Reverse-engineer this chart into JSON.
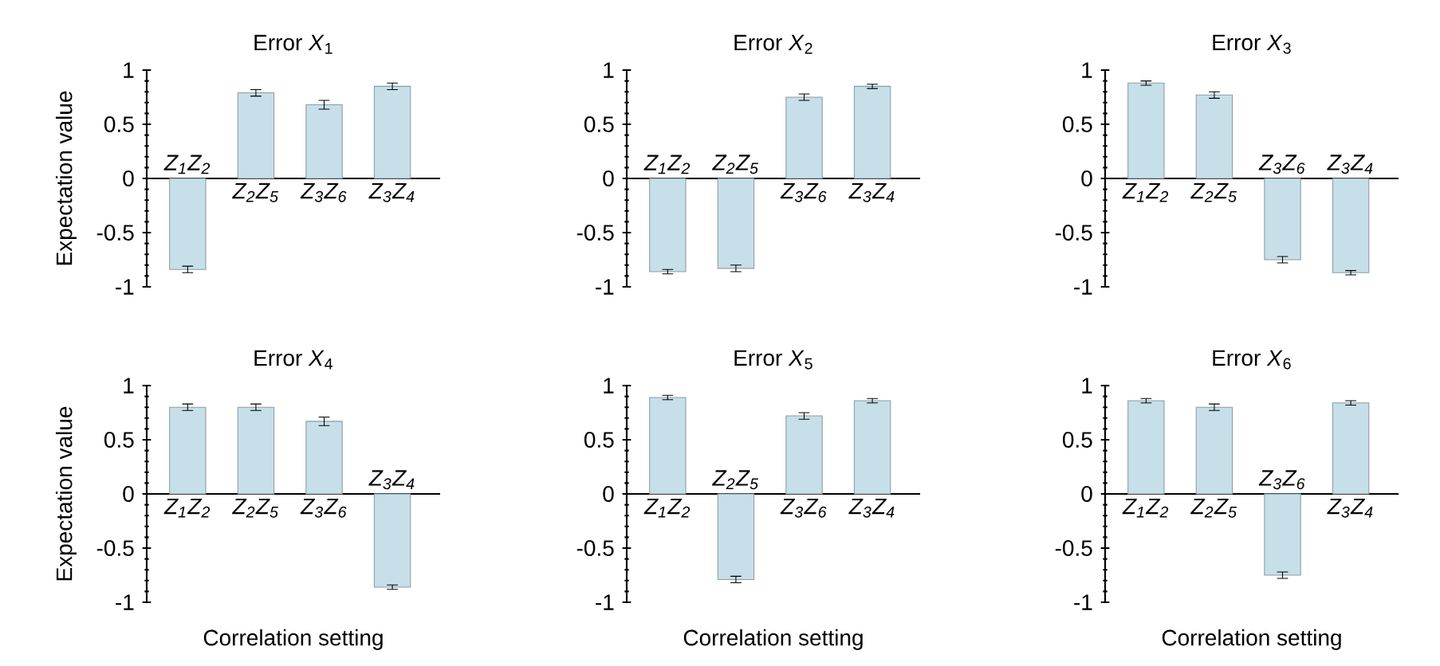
{
  "chart_data": [
    {
      "type": "bar",
      "title": "Error *X*$_{1}$",
      "ylabel": "Expectation value",
      "categories": [
        "Z$_{1}$Z$_{2}$",
        "Z$_{2}$Z$_{5}$",
        "Z$_{3}$Z$_{6}$",
        "Z$_{3}$Z$_{4}$"
      ],
      "values": [
        -0.84,
        0.79,
        0.68,
        0.85
      ],
      "errors": [
        0.03,
        0.03,
        0.04,
        0.03
      ],
      "color": "#c6dfe9",
      "ylim": [
        -1,
        1
      ],
      "yticks": [
        -1,
        -0.5,
        0,
        0.5,
        1
      ]
    },
    {
      "type": "bar",
      "title": "Error *X*$_{2}$",
      "categories": [
        "Z$_{1}$Z$_{2}$",
        "Z$_{2}$Z$_{5}$",
        "Z$_{3}$Z$_{6}$",
        "Z$_{3}$Z$_{4}$"
      ],
      "values": [
        -0.86,
        -0.83,
        0.75,
        0.85
      ],
      "errors": [
        0.02,
        0.03,
        0.03,
        0.02
      ],
      "color": "#c6dfe9",
      "ylim": [
        -1,
        1
      ],
      "yticks": [
        -1,
        -0.5,
        0,
        0.5,
        1
      ]
    },
    {
      "type": "bar",
      "title": "Error *X*$_{3}$",
      "categories": [
        "Z$_{1}$Z$_{2}$",
        "Z$_{2}$Z$_{5}$",
        "Z$_{3}$Z$_{6}$",
        "Z$_{3}$Z$_{4}$"
      ],
      "values": [
        0.88,
        0.77,
        -0.75,
        -0.87
      ],
      "errors": [
        0.02,
        0.03,
        0.03,
        0.02
      ],
      "color": "#c6dfe9",
      "ylim": [
        -1,
        1
      ],
      "yticks": [
        -1,
        -0.5,
        0,
        0.5,
        1
      ]
    },
    {
      "type": "bar",
      "title": "Error *X*$_{4}$",
      "ylabel": "Expectation value",
      "xlabel": "Correlation setting",
      "categories": [
        "Z$_{1}$Z$_{2}$",
        "Z$_{2}$Z$_{5}$",
        "Z$_{3}$Z$_{6}$",
        "Z$_{3}$Z$_{4}$"
      ],
      "values": [
        0.8,
        0.8,
        0.67,
        -0.86
      ],
      "errors": [
        0.03,
        0.03,
        0.04,
        0.02
      ],
      "color": "#c6dfe9",
      "ylim": [
        -1,
        1
      ],
      "yticks": [
        -1,
        -0.5,
        0,
        0.5,
        1
      ]
    },
    {
      "type": "bar",
      "title": "Error *X*$_{5}$",
      "xlabel": "Correlation setting",
      "categories": [
        "Z$_{1}$Z$_{2}$",
        "Z$_{2}$Z$_{5}$",
        "Z$_{3}$Z$_{6}$",
        "Z$_{3}$Z$_{4}$"
      ],
      "values": [
        0.89,
        -0.79,
        0.72,
        0.86
      ],
      "errors": [
        0.02,
        0.03,
        0.03,
        0.02
      ],
      "color": "#c6dfe9",
      "ylim": [
        -1,
        1
      ],
      "yticks": [
        -1,
        -0.5,
        0,
        0.5,
        1
      ]
    },
    {
      "type": "bar",
      "title": "Error *X*$_{6}$",
      "xlabel": "Correlation setting",
      "categories": [
        "Z$_{1}$Z$_{2}$",
        "Z$_{2}$Z$_{5}$",
        "Z$_{3}$Z$_{6}$",
        "Z$_{3}$Z$_{4}$"
      ],
      "values": [
        0.86,
        0.8,
        -0.75,
        0.84
      ],
      "errors": [
        0.02,
        0.03,
        0.03,
        0.02
      ],
      "color": "#c6dfe9",
      "ylim": [
        -1,
        1
      ],
      "yticks": [
        -1,
        -0.5,
        0,
        0.5,
        1
      ]
    }
  ]
}
